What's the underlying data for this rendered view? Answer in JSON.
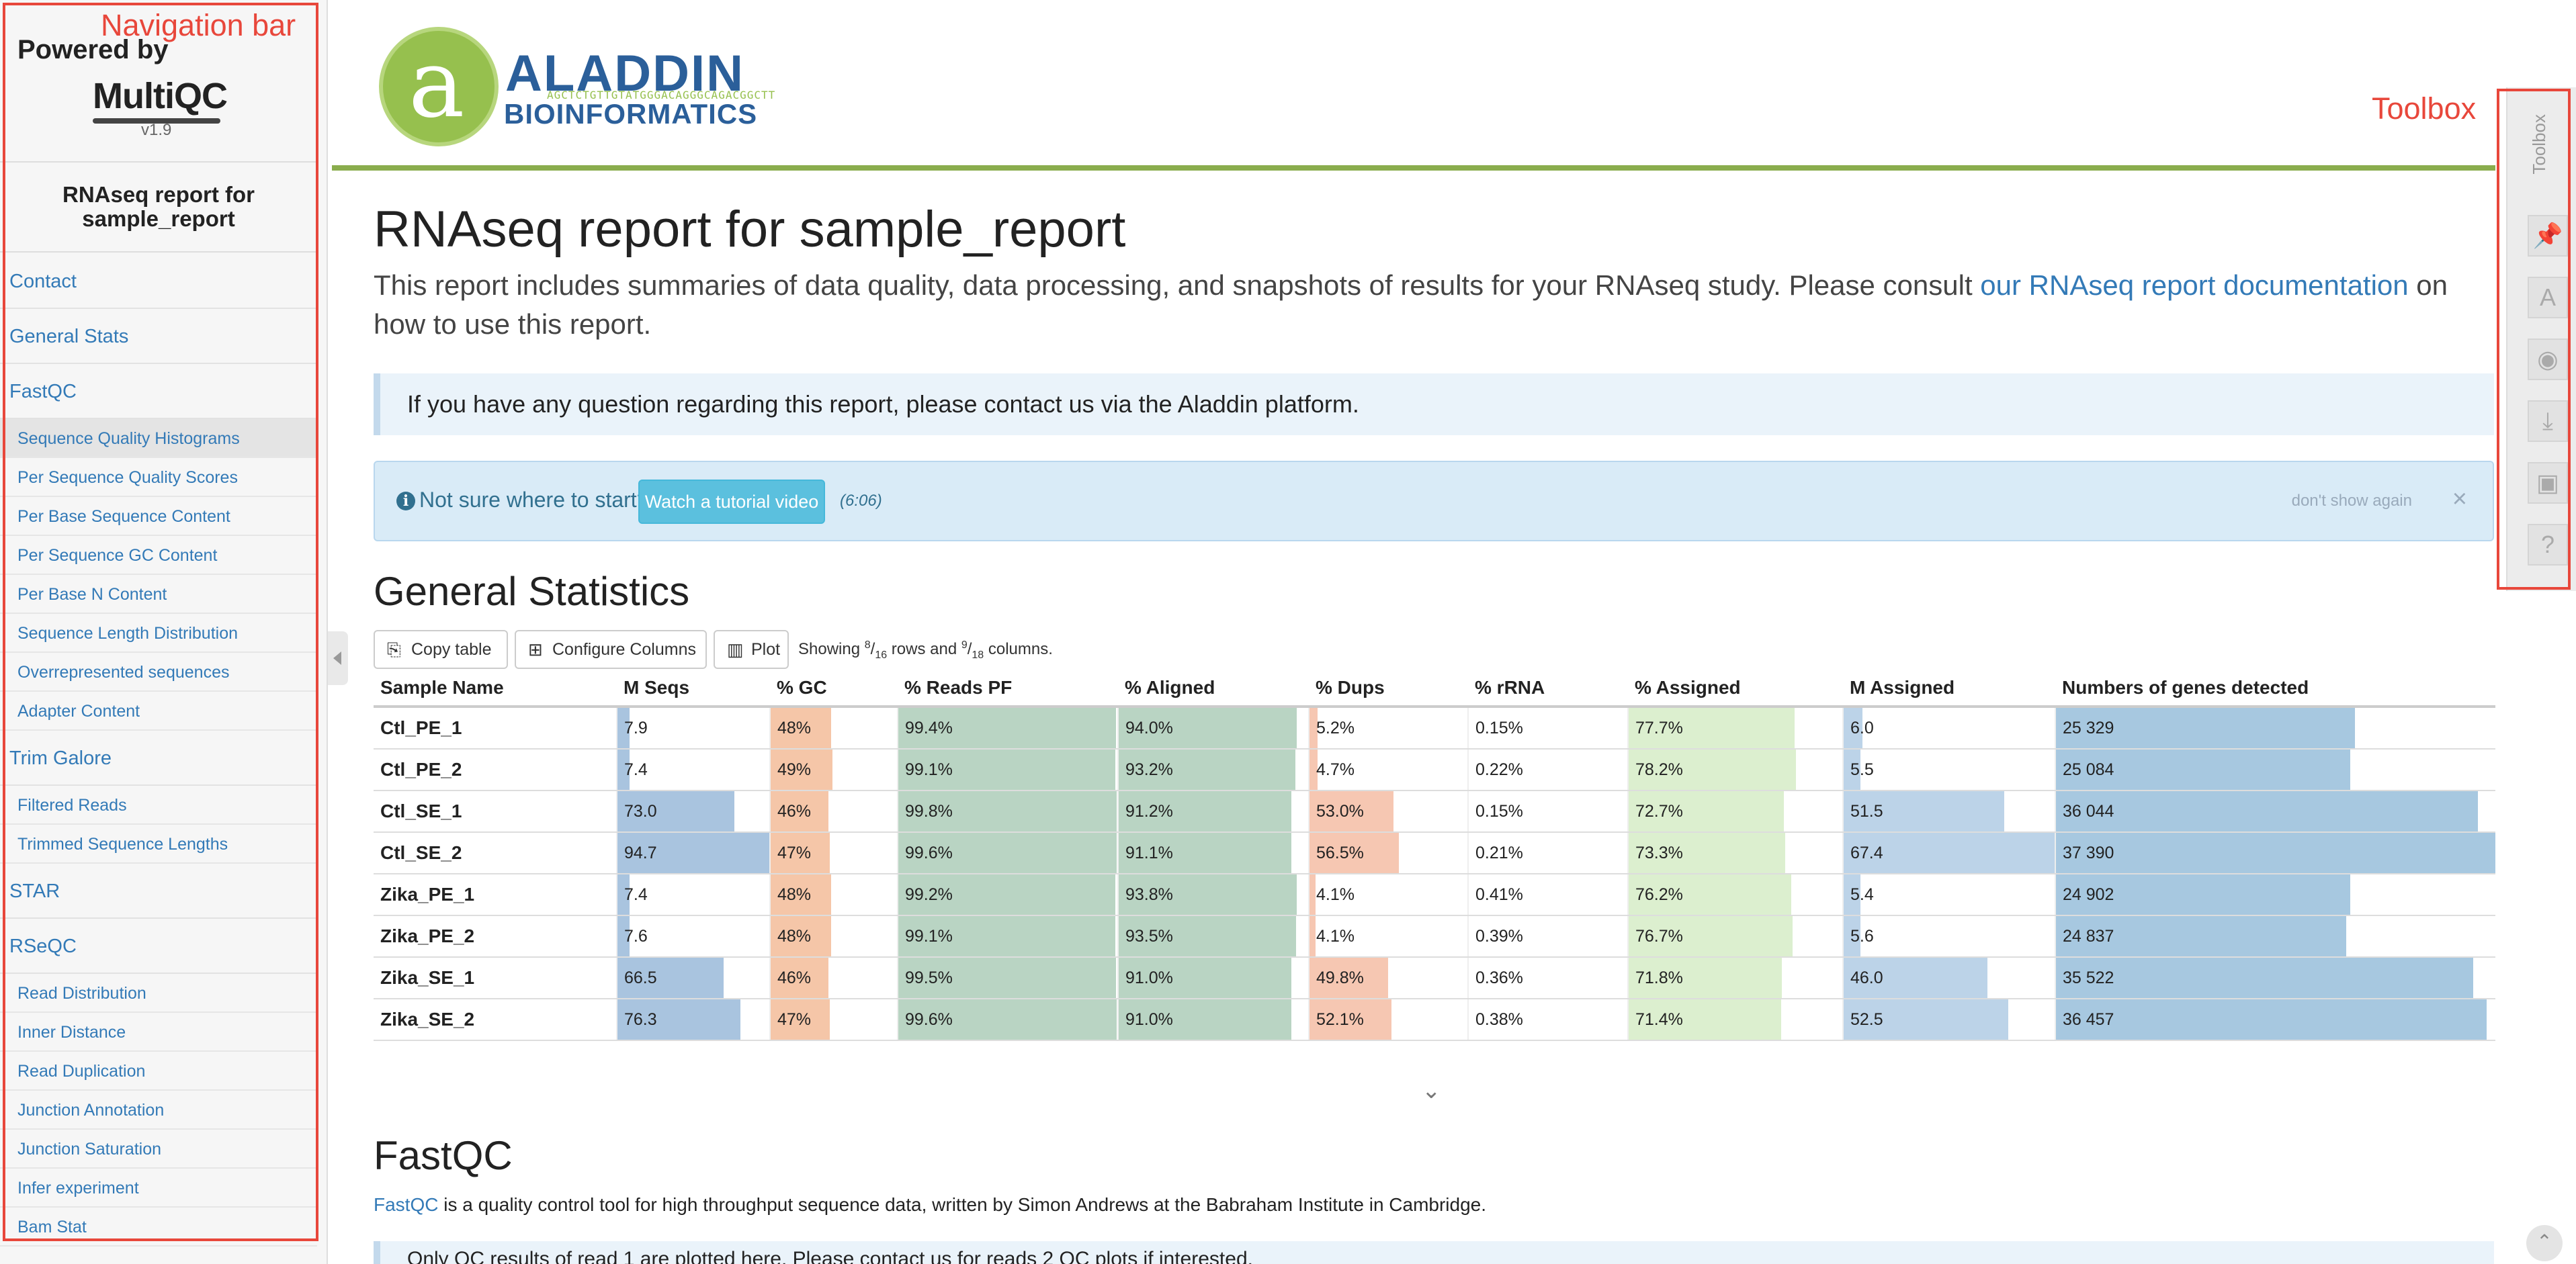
{
  "annotations": {
    "nav": "Navigation bar",
    "toolbox": "Toolbox"
  },
  "sidebar": {
    "powered_by": "Powered by",
    "logo": "MultiQC",
    "version": "v1.9",
    "report_title": "RNAseq report for sample_report",
    "nav": [
      {
        "label": "Contact",
        "level": 1
      },
      {
        "label": "General Stats",
        "level": 1
      },
      {
        "label": "FastQC",
        "level": 1
      },
      {
        "label": "Sequence Quality Histograms",
        "level": 2,
        "active": true
      },
      {
        "label": "Per Sequence Quality Scores",
        "level": 2
      },
      {
        "label": "Per Base Sequence Content",
        "level": 2
      },
      {
        "label": "Per Sequence GC Content",
        "level": 2
      },
      {
        "label": "Per Base N Content",
        "level": 2
      },
      {
        "label": "Sequence Length Distribution",
        "level": 2
      },
      {
        "label": "Overrepresented sequences",
        "level": 2
      },
      {
        "label": "Adapter Content",
        "level": 2
      },
      {
        "label": "Trim Galore",
        "level": 1
      },
      {
        "label": "Filtered Reads",
        "level": 2
      },
      {
        "label": "Trimmed Sequence Lengths",
        "level": 2
      },
      {
        "label": "STAR",
        "level": 1
      },
      {
        "label": "RSeQC",
        "level": 1
      },
      {
        "label": "Read Distribution",
        "level": 2
      },
      {
        "label": "Inner Distance",
        "level": 2
      },
      {
        "label": "Read Duplication",
        "level": 2
      },
      {
        "label": "Junction Annotation",
        "level": 2
      },
      {
        "label": "Junction Saturation",
        "level": 2
      },
      {
        "label": "Infer experiment",
        "level": 2
      },
      {
        "label": "Bam Stat",
        "level": 2
      }
    ]
  },
  "header": {
    "logo_letter": "a",
    "logo_line1": "ALADDIN",
    "logo_dna": "AGCTCTGTTGTATGGGACAGGGCAGACGGCTT",
    "logo_line2": "BIOINFORMATICS"
  },
  "main": {
    "title": "RNAseq report for sample_report",
    "intro_before": "This report includes summaries of data quality, data processing, and snapshots of results for your RNAseq study. Please consult ",
    "intro_link": "our RNAseq report documentation",
    "intro_after": " on how to use this report.",
    "contact_callout": "If you have any question regarding this report, please contact us via the Aladdin platform.",
    "tutorial": {
      "question": "Not sure where to start?",
      "button": "Watch a tutorial video",
      "duration": "(6:06)",
      "dont_show": "don't show again",
      "close": "×"
    },
    "general_stats_title": "General Statistics",
    "buttons": {
      "copy": "Copy table",
      "configure": "Configure Columns",
      "plot": "Plot"
    },
    "showing": {
      "prefix": "Showing ",
      "rows_num": "8",
      "rows_den": "16",
      "mid": " rows and ",
      "cols_num": "9",
      "cols_den": "18",
      "suffix": " columns."
    },
    "fastqc_title": "FastQC",
    "fastqc_link": "FastQC",
    "fastqc_desc": " is a quality control tool for high throughput sequence data, written by Simon Andrews at the Babraham Institute in Cambridge.",
    "fastqc_callout": "Only QC results of read 1 are plotted here. Please contact us for reads 2 QC plots if interested."
  },
  "general_stats": {
    "columns": [
      "Sample Name",
      "M Seqs",
      "% GC",
      "% Reads PF",
      "% Aligned",
      "% Dups",
      "% rRNA",
      "% Assigned",
      "M Assigned",
      "Numbers of genes detected"
    ],
    "colors": {
      "mseqs": "#a9c4df",
      "gc": "#f5c6a8",
      "pf": "#b9d4c3",
      "aligned": "#b9d4c3",
      "dups": "#f6c7b2",
      "rrna": "#ffffff",
      "assigned": "#dcefcf",
      "massigned": "#bcd3e8",
      "genes": "#a7c8e0"
    },
    "rows": [
      {
        "name": "Ctl_PE_1",
        "mseqs": "7.9",
        "gc": "48%",
        "pf": "99.4%",
        "aligned": "94.0%",
        "dups": "5.2%",
        "rrna": "0.15%",
        "assigned": "77.7%",
        "massigned": "6.0",
        "genes": "25 329",
        "fill": {
          "mseqs": 0.08,
          "gc": 0.48,
          "pf": 0.994,
          "aligned": 0.94,
          "dups": 0.05,
          "rrna": 0,
          "assigned": 0.777,
          "massigned": 0.09,
          "genes": 0.68
        }
      },
      {
        "name": "Ctl_PE_2",
        "mseqs": "7.4",
        "gc": "49%",
        "pf": "99.1%",
        "aligned": "93.2%",
        "dups": "4.7%",
        "rrna": "0.22%",
        "assigned": "78.2%",
        "massigned": "5.5",
        "genes": "25 084",
        "fill": {
          "mseqs": 0.08,
          "gc": 0.49,
          "pf": 0.991,
          "aligned": 0.932,
          "dups": 0.05,
          "rrna": 0,
          "assigned": 0.782,
          "massigned": 0.08,
          "genes": 0.67
        }
      },
      {
        "name": "Ctl_SE_1",
        "mseqs": "73.0",
        "gc": "46%",
        "pf": "99.8%",
        "aligned": "91.2%",
        "dups": "53.0%",
        "rrna": "0.15%",
        "assigned": "72.7%",
        "massigned": "51.5",
        "genes": "36 044",
        "fill": {
          "mseqs": 0.77,
          "gc": 0.46,
          "pf": 0.998,
          "aligned": 0.912,
          "dups": 0.53,
          "rrna": 0,
          "assigned": 0.727,
          "massigned": 0.76,
          "genes": 0.96
        }
      },
      {
        "name": "Ctl_SE_2",
        "mseqs": "94.7",
        "gc": "47%",
        "pf": "99.6%",
        "aligned": "91.1%",
        "dups": "56.5%",
        "rrna": "0.21%",
        "assigned": "73.3%",
        "massigned": "67.4",
        "genes": "37 390",
        "fill": {
          "mseqs": 1.0,
          "gc": 0.47,
          "pf": 0.996,
          "aligned": 0.911,
          "dups": 0.565,
          "rrna": 0,
          "assigned": 0.733,
          "massigned": 1.0,
          "genes": 1.0
        }
      },
      {
        "name": "Zika_PE_1",
        "mseqs": "7.4",
        "gc": "48%",
        "pf": "99.2%",
        "aligned": "93.8%",
        "dups": "4.1%",
        "rrna": "0.41%",
        "assigned": "76.2%",
        "massigned": "5.4",
        "genes": "24 902",
        "fill": {
          "mseqs": 0.08,
          "gc": 0.48,
          "pf": 0.992,
          "aligned": 0.938,
          "dups": 0.04,
          "rrna": 0,
          "assigned": 0.762,
          "massigned": 0.08,
          "genes": 0.67
        }
      },
      {
        "name": "Zika_PE_2",
        "mseqs": "7.6",
        "gc": "48%",
        "pf": "99.1%",
        "aligned": "93.5%",
        "dups": "4.1%",
        "rrna": "0.39%",
        "assigned": "76.7%",
        "massigned": "5.6",
        "genes": "24 837",
        "fill": {
          "mseqs": 0.08,
          "gc": 0.48,
          "pf": 0.991,
          "aligned": 0.935,
          "dups": 0.04,
          "rrna": 0,
          "assigned": 0.767,
          "massigned": 0.08,
          "genes": 0.66
        }
      },
      {
        "name": "Zika_SE_1",
        "mseqs": "66.5",
        "gc": "46%",
        "pf": "99.5%",
        "aligned": "91.0%",
        "dups": "49.8%",
        "rrna": "0.36%",
        "assigned": "71.8%",
        "massigned": "46.0",
        "genes": "35 522",
        "fill": {
          "mseqs": 0.7,
          "gc": 0.46,
          "pf": 0.995,
          "aligned": 0.91,
          "dups": 0.498,
          "rrna": 0,
          "assigned": 0.718,
          "massigned": 0.68,
          "genes": 0.95
        }
      },
      {
        "name": "Zika_SE_2",
        "mseqs": "76.3",
        "gc": "47%",
        "pf": "99.6%",
        "aligned": "91.0%",
        "dups": "52.1%",
        "rrna": "0.38%",
        "assigned": "71.4%",
        "massigned": "52.5",
        "genes": "36 457",
        "fill": {
          "mseqs": 0.81,
          "gc": 0.47,
          "pf": 0.996,
          "aligned": 0.91,
          "dups": 0.521,
          "rrna": 0,
          "assigned": 0.714,
          "massigned": 0.78,
          "genes": 0.98
        }
      }
    ]
  },
  "toolbox": {
    "title": "Toolbox",
    "buttons": [
      {
        "icon": "pin-icon",
        "glyph": "📌"
      },
      {
        "icon": "font-icon",
        "glyph": "A"
      },
      {
        "icon": "eye-slash-icon",
        "glyph": "◉"
      },
      {
        "icon": "download-icon",
        "glyph": "⤓"
      },
      {
        "icon": "save-icon",
        "glyph": "▣"
      },
      {
        "icon": "help-icon",
        "glyph": "?"
      }
    ]
  }
}
